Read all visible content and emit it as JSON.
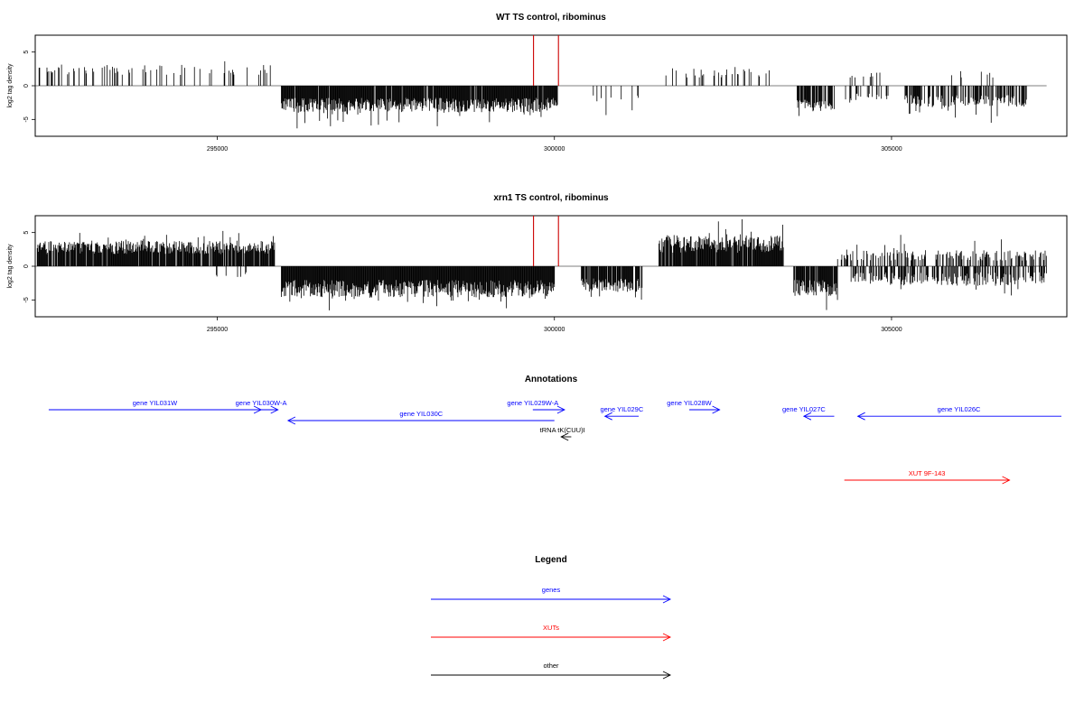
{
  "chart_data": [
    {
      "type": "bar",
      "title": "WT TS control, ribominus",
      "ylabel": "log2 tag density",
      "xlim": [
        292300,
        307600
      ],
      "ylim": [
        -7.5,
        7.5
      ],
      "xticks": [
        295000,
        300000,
        305000
      ],
      "yticks": [
        5,
        0,
        -5
      ],
      "xtick_labels": [
        "295000",
        "300000",
        "305000"
      ],
      "ytick_labels": [
        "5",
        "0",
        "-5"
      ],
      "segments": [
        {
          "start": 292330,
          "end": 295800,
          "sign": 1,
          "density": 0.18,
          "base": 1.6,
          "amp": 1.5,
          "seed": 11
        },
        {
          "start": 295950,
          "end": 300050,
          "sign": -1,
          "density": 0.95,
          "base": 1.8,
          "amp": 2.2,
          "seed": 23
        },
        {
          "start": 300550,
          "end": 301300,
          "sign": -1,
          "density": 0.12,
          "base": 1.4,
          "amp": 1.2,
          "seed": 37
        },
        {
          "start": 301600,
          "end": 303200,
          "sign": 1,
          "density": 0.18,
          "base": 1.2,
          "amp": 1.6,
          "seed": 41
        },
        {
          "start": 303600,
          "end": 304150,
          "sign": -1,
          "density": 0.75,
          "base": 2.0,
          "amp": 1.8,
          "seed": 53
        },
        {
          "start": 304300,
          "end": 305000,
          "sign": -1,
          "density": 0.25,
          "base": 1.0,
          "amp": 1.2,
          "seed": 59
        },
        {
          "start": 304350,
          "end": 304900,
          "sign": 1,
          "density": 0.15,
          "base": 1.0,
          "amp": 1.0,
          "seed": 61
        },
        {
          "start": 305200,
          "end": 307000,
          "sign": -1,
          "density": 0.55,
          "base": 1.4,
          "amp": 1.8,
          "seed": 67
        },
        {
          "start": 305800,
          "end": 306600,
          "sign": 1,
          "density": 0.08,
          "base": 1.2,
          "amp": 1.0,
          "seed": 71
        }
      ],
      "highlight_bars": [
        {
          "x": 299690,
          "y": 7.5
        },
        {
          "x": 300060,
          "y": 7.5
        }
      ],
      "baseline": {
        "from": 292300,
        "to": 307300
      },
      "colors": {
        "bars": "#000000",
        "highlight": "#cc0000"
      }
    },
    {
      "type": "bar",
      "title": "xrn1 TS control, ribominus",
      "ylabel": "log2 tag density",
      "xlim": [
        292300,
        307600
      ],
      "ylim": [
        -7.5,
        7.5
      ],
      "xticks": [
        295000,
        300000,
        305000
      ],
      "yticks": [
        5,
        0,
        -5
      ],
      "xtick_labels": [
        "295000",
        "300000",
        "305000"
      ],
      "ytick_labels": [
        "5",
        "0",
        "-5"
      ],
      "segments": [
        {
          "start": 292330,
          "end": 295850,
          "sign": 1,
          "density": 0.9,
          "base": 1.8,
          "amp": 2.0,
          "seed": 101
        },
        {
          "start": 294950,
          "end": 295600,
          "sign": -1,
          "density": 0.12,
          "base": 0.8,
          "amp": 0.8,
          "seed": 103
        },
        {
          "start": 295950,
          "end": 300000,
          "sign": -1,
          "density": 1.0,
          "base": 2.0,
          "amp": 2.6,
          "seed": 107
        },
        {
          "start": 300400,
          "end": 301300,
          "sign": -1,
          "density": 0.85,
          "base": 1.8,
          "amp": 2.0,
          "seed": 109
        },
        {
          "start": 301550,
          "end": 303400,
          "sign": 1,
          "density": 0.95,
          "base": 2.0,
          "amp": 2.6,
          "seed": 113
        },
        {
          "start": 303550,
          "end": 304200,
          "sign": -1,
          "density": 0.85,
          "base": 2.0,
          "amp": 2.4,
          "seed": 127
        },
        {
          "start": 304200,
          "end": 307300,
          "sign": 1,
          "density": 0.45,
          "base": 0.8,
          "amp": 1.6,
          "seed": 131
        },
        {
          "start": 304400,
          "end": 307300,
          "sign": -1,
          "density": 0.55,
          "base": 0.9,
          "amp": 2.0,
          "seed": 137
        }
      ],
      "highlight_bars": [
        {
          "x": 299690,
          "y": 7.5
        },
        {
          "x": 300060,
          "y": 7.5
        }
      ],
      "baseline": {
        "from": 292300,
        "to": 307300
      },
      "colors": {
        "bars": "#000000",
        "highlight": "#cc0000"
      }
    },
    {
      "type": "other",
      "title": "Annotations",
      "xlim": [
        292300,
        307600
      ],
      "features": [
        {
          "label": "gene YIL031W",
          "start": 292500,
          "end": 295650,
          "strand": "+",
          "track": 0,
          "color": "#0000ff"
        },
        {
          "label": "gene YIL030W-A",
          "start": 295650,
          "end": 295900,
          "strand": "+",
          "track": 0,
          "color": "#0000ff",
          "label_at": 295650
        },
        {
          "label": "gene YIL030C",
          "start": 296050,
          "end": 300000,
          "strand": "-",
          "track": 1,
          "color": "#0000ff"
        },
        {
          "label": "gene YIL029W-A",
          "start": 299680,
          "end": 300150,
          "strand": "+",
          "track": 0,
          "color": "#0000ff",
          "label_at": 299680
        },
        {
          "label": "gene YIL029C",
          "start": 300750,
          "end": 301250,
          "strand": "-",
          "track": 0.6,
          "color": "#0000ff",
          "label_at": 301000
        },
        {
          "label": "gene YIL028W",
          "start": 302000,
          "end": 302450,
          "strand": "+",
          "track": 0,
          "color": "#0000ff",
          "label_at": 302000
        },
        {
          "label": "gene YIL027C",
          "start": 303700,
          "end": 304150,
          "strand": "-",
          "track": 0.6,
          "color": "#0000ff",
          "label_at": 303700
        },
        {
          "label": "gene YIL026C",
          "start": 304500,
          "end": 307600,
          "strand": "-",
          "track": 0.6,
          "color": "#0000ff",
          "label_at": 306000
        },
        {
          "label": "tRNA tK(CUU)I",
          "start": 300100,
          "end": 300250,
          "strand": "-",
          "track": 2.5,
          "color": "#000000",
          "label_at": 300120
        },
        {
          "label": "XUT 9F-143",
          "start": 304300,
          "end": 306750,
          "strand": "+",
          "track": 6.5,
          "color": "#ff0000"
        }
      ]
    },
    {
      "type": "other",
      "title": "Legend",
      "entries": [
        {
          "label": "genes",
          "color": "#0000ff"
        },
        {
          "label": "XUTs",
          "color": "#ff0000"
        },
        {
          "label": "other",
          "color": "#000000"
        }
      ]
    }
  ]
}
